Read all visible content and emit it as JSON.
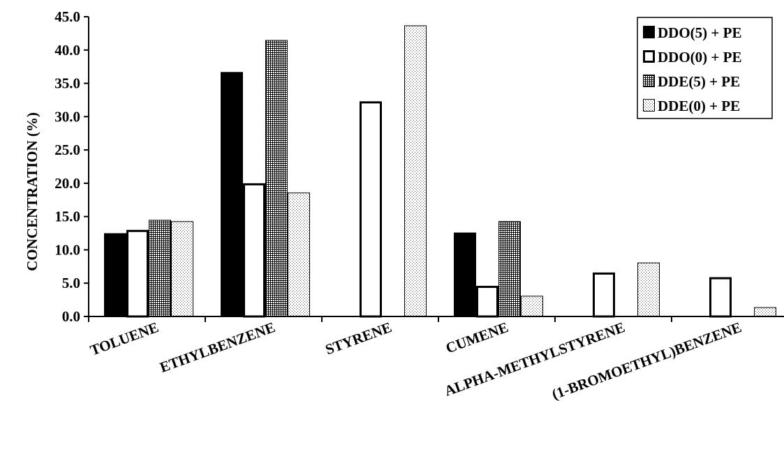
{
  "chart_data": {
    "type": "bar",
    "title": "",
    "xlabel": "",
    "ylabel": "CONCENTRATION (%)",
    "ylim": [
      0,
      45
    ],
    "yticks": [
      "0.0",
      "5.0",
      "10.0",
      "15.0",
      "20.0",
      "25.0",
      "30.0",
      "35.0",
      "40.0",
      "45.0"
    ],
    "grid": false,
    "legend_position": "top-right",
    "categories": [
      "TOLUENE",
      "ETHYLBENZENE",
      "STYRENE",
      "CUMENE",
      "ALPHA-METHYLSTYRENE",
      "(1-BROMOETHYL)BENZENE"
    ],
    "series": [
      {
        "name": "DDO(5) + PE",
        "pattern": "solid",
        "color": "#000000",
        "values": [
          12.5,
          36.7,
          0,
          12.6,
          0,
          0
        ]
      },
      {
        "name": "DDO(0) + PE",
        "pattern": "hollow",
        "color": "#ffffff",
        "values": [
          13.0,
          20.0,
          32.3,
          4.6,
          6.6,
          5.9
        ]
      },
      {
        "name": "DDE(5) + PE",
        "pattern": "grid",
        "color": "#000000",
        "values": [
          14.5,
          41.5,
          0,
          14.3,
          0,
          0
        ]
      },
      {
        "name": "DDE(0) + PE",
        "pattern": "dots",
        "color": "#000000",
        "values": [
          14.3,
          18.6,
          43.7,
          3.1,
          8.1,
          1.4
        ]
      }
    ]
  }
}
